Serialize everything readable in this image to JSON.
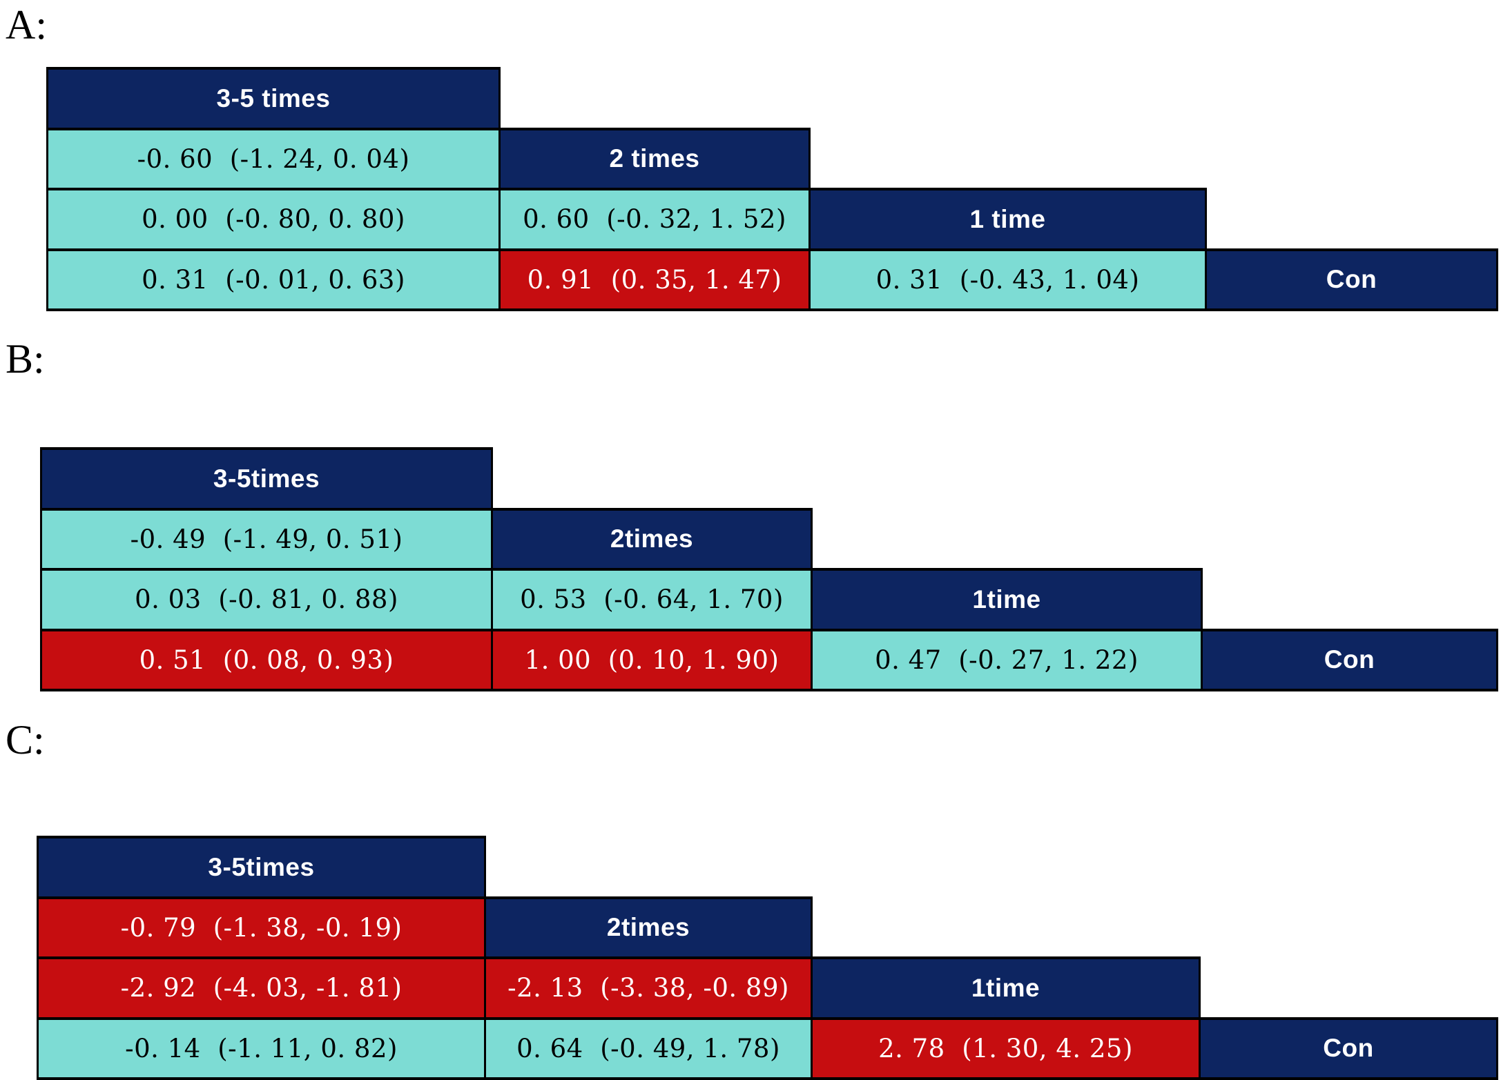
{
  "colors": {
    "header_navy": "#0d2561",
    "nonsignificant_teal": "#7ddcd4",
    "significant_red": "#c60d10",
    "border": "#000000",
    "background": "#ffffff"
  },
  "chart_data": [
    {
      "type": "table",
      "panel": "A",
      "panel_label": "A:",
      "layout": "lower-triangle league table (staircase)",
      "treatments": [
        "3-5 times",
        "2 times",
        "1 time",
        "Con"
      ],
      "cells": [
        {
          "row": 1,
          "col": 0,
          "comparison": "3-5 times vs 2 times",
          "text": "-0. 60  (-1. 24, 0. 04)",
          "estimate": -0.6,
          "ci": [
            -1.24,
            0.04
          ],
          "significant": false
        },
        {
          "row": 2,
          "col": 0,
          "comparison": "3-5 times vs 1 time",
          "text": "0. 00  (-0. 80, 0. 80)",
          "estimate": 0.0,
          "ci": [
            -0.8,
            0.8
          ],
          "significant": false
        },
        {
          "row": 2,
          "col": 1,
          "comparison": "2 times vs 1 time",
          "text": "0. 60  (-0. 32, 1. 52)",
          "estimate": 0.6,
          "ci": [
            -0.32,
            1.52
          ],
          "significant": false
        },
        {
          "row": 3,
          "col": 0,
          "comparison": "3-5 times vs Con",
          "text": "0. 31  (-0. 01, 0. 63)",
          "estimate": 0.31,
          "ci": [
            -0.01,
            0.63
          ],
          "significant": false
        },
        {
          "row": 3,
          "col": 1,
          "comparison": "2 times vs Con",
          "text": "0. 91  (0. 35, 1. 47)",
          "estimate": 0.91,
          "ci": [
            0.35,
            1.47
          ],
          "significant": true
        },
        {
          "row": 3,
          "col": 2,
          "comparison": "1 time vs Con",
          "text": "0. 31  (-0. 43, 1. 04)",
          "estimate": 0.31,
          "ci": [
            -0.43,
            1.04
          ],
          "significant": false
        }
      ]
    },
    {
      "type": "table",
      "panel": "B",
      "panel_label": "B:",
      "layout": "lower-triangle league table (staircase)",
      "treatments": [
        "3-5times",
        "2times",
        "1time",
        "Con"
      ],
      "cells": [
        {
          "row": 1,
          "col": 0,
          "comparison": "3-5times vs 2times",
          "text": "-0. 49  (-1. 49, 0. 51)",
          "estimate": -0.49,
          "ci": [
            -1.49,
            0.51
          ],
          "significant": false
        },
        {
          "row": 2,
          "col": 0,
          "comparison": "3-5times vs 1time",
          "text": "0. 03  (-0. 81, 0. 88)",
          "estimate": 0.03,
          "ci": [
            -0.81,
            0.88
          ],
          "significant": false
        },
        {
          "row": 2,
          "col": 1,
          "comparison": "2times vs 1time",
          "text": "0. 53  (-0. 64, 1. 70)",
          "estimate": 0.53,
          "ci": [
            -0.64,
            1.7
          ],
          "significant": false
        },
        {
          "row": 3,
          "col": 0,
          "comparison": "3-5times vs Con",
          "text": "0. 51  (0. 08, 0. 93)",
          "estimate": 0.51,
          "ci": [
            0.08,
            0.93
          ],
          "significant": true
        },
        {
          "row": 3,
          "col": 1,
          "comparison": "2times vs Con",
          "text": "1. 00  (0. 10, 1. 90)",
          "estimate": 1.0,
          "ci": [
            0.1,
            1.9
          ],
          "significant": true
        },
        {
          "row": 3,
          "col": 2,
          "comparison": "1time vs Con",
          "text": "0. 47  (-0. 27, 1. 22)",
          "estimate": 0.47,
          "ci": [
            -0.27,
            1.22
          ],
          "significant": false
        }
      ]
    },
    {
      "type": "table",
      "panel": "C",
      "panel_label": "C:",
      "layout": "lower-triangle league table (staircase)",
      "treatments": [
        "3-5times",
        "2times",
        "1time",
        "Con"
      ],
      "cells": [
        {
          "row": 1,
          "col": 0,
          "comparison": "3-5times vs 2times",
          "text": "-0. 79  (-1. 38, -0. 19)",
          "estimate": -0.79,
          "ci": [
            -1.38,
            -0.19
          ],
          "significant": true
        },
        {
          "row": 2,
          "col": 0,
          "comparison": "3-5times vs 1time",
          "text": "-2. 92  (-4. 03, -1. 81)",
          "estimate": -2.92,
          "ci": [
            -4.03,
            -1.81
          ],
          "significant": true
        },
        {
          "row": 2,
          "col": 1,
          "comparison": "2times vs 1time",
          "text": "-2. 13  (-3. 38, -0. 89)",
          "estimate": -2.13,
          "ci": [
            -3.38,
            -0.89
          ],
          "significant": true
        },
        {
          "row": 3,
          "col": 0,
          "comparison": "3-5times vs Con",
          "text": "-0. 14  (-1. 11, 0. 82)",
          "estimate": -0.14,
          "ci": [
            -1.11,
            0.82
          ],
          "significant": false
        },
        {
          "row": 3,
          "col": 1,
          "comparison": "2times vs Con",
          "text": "0. 64  (-0. 49, 1. 78)",
          "estimate": 0.64,
          "ci": [
            -0.49,
            1.78
          ],
          "significant": false
        },
        {
          "row": 3,
          "col": 2,
          "comparison": "1time vs Con",
          "text": "2. 78  (1. 30, 4. 25)",
          "estimate": 2.78,
          "ci": [
            1.3,
            4.25
          ],
          "significant": true
        }
      ]
    }
  ]
}
